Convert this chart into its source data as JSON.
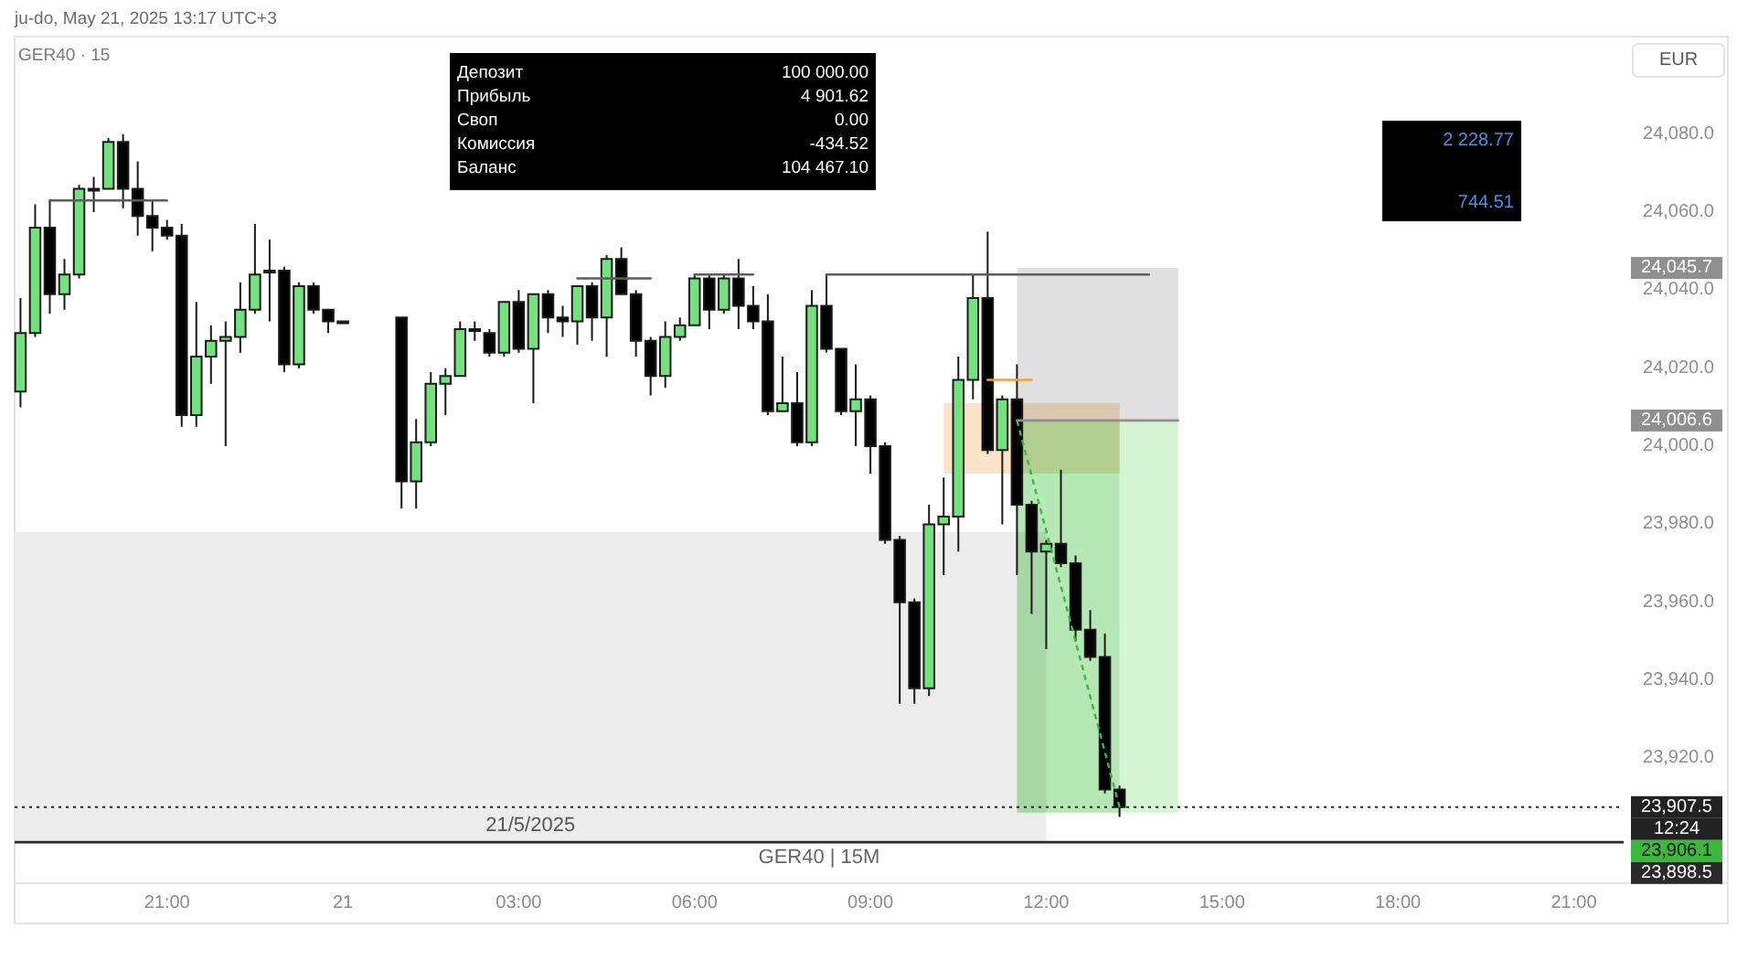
{
  "chart_data": [
    {
      "type": "candlestick",
      "title": "GER40 · 15",
      "ylabel": "EUR",
      "annotations": [
        "ju-do, May 21, 2025 13:17 UTC+3",
        "GER40 | 15M",
        "24,045.7",
        "24,006.6",
        "12:24",
        "23,906.1",
        "21/5/2025"
      ],
      "xlim": [
        "2025-05-20T18:24",
        "2025-05-21T21:51"
      ],
      "xticks": [
        {
          "value": "2025-05-20T21:00",
          "label": "21:00"
        },
        {
          "value": "2025-05-21T00:00",
          "label": "21"
        },
        {
          "value": "2025-05-21T03:00",
          "label": "03:00"
        },
        {
          "value": "2025-05-21T06:00",
          "label": "06:00"
        },
        {
          "value": "2025-05-21T09:00",
          "label": "09:00"
        },
        {
          "value": "2025-05-21T12:00",
          "label": "12:00"
        },
        {
          "value": "2025-05-21T15:00",
          "label": "15:00"
        },
        {
          "value": "2025-05-21T18:00",
          "label": "18:00"
        },
        {
          "value": "2025-05-21T21:00",
          "label": "21:00"
        }
      ],
      "ylim": [
        23888,
        24105
      ],
      "yticks": [
        {
          "value": 23920,
          "label": "23,920.0"
        },
        {
          "value": 23940,
          "label": "23,940.0"
        },
        {
          "value": 23960,
          "label": "23,960.0"
        },
        {
          "value": 23980,
          "label": "23,980.0"
        },
        {
          "value": 24000,
          "label": "24,000.0"
        },
        {
          "value": 24020,
          "label": "24,020.0"
        },
        {
          "value": 24040,
          "label": "24,040.0"
        },
        {
          "value": 24060,
          "label": "24,060.0"
        },
        {
          "value": 24080,
          "label": "24,080.0"
        }
      ],
      "ref_lines": [
        {
          "axis": "y",
          "value": 23907.5,
          "label": "23,907.5",
          "line_style": "dotted",
          "color": "#222222"
        },
        {
          "axis": "y",
          "value": 23898.5,
          "label": "23,898.5",
          "color": "#2a2a2a"
        }
      ],
      "series": [
        {
          "type": "line",
          "color": "#ececec",
          "x": [
            "2025-05-20T18:24",
            "2025-05-21T12:00"
          ],
          "values": [
            null,
            null
          ],
          "lower": [
            23898.5,
            23898.5
          ],
          "upper": [
            23978,
            23978
          ]
        },
        {
          "type": "line",
          "color": "#e0e0e0",
          "x": [
            "2025-05-21T11:30",
            "2025-05-21T14:15"
          ],
          "values": [
            null,
            null
          ],
          "lower": [
            24006.6,
            24006.6
          ],
          "upper": [
            24045.7,
            24045.7
          ]
        },
        {
          "type": "line",
          "color": "#b5e8b5",
          "x": [
            "2025-05-21T11:30",
            "2025-05-21T13:15"
          ],
          "values": [
            null,
            null
          ],
          "lower": [
            23906.1,
            23906.1
          ],
          "upper": [
            24006.6,
            24006.6
          ]
        },
        {
          "type": "line",
          "color": "#d4f5d4",
          "x": [
            "2025-05-21T13:15",
            "2025-05-21T14:15"
          ],
          "values": [
            null,
            null
          ],
          "lower": [
            23906.1,
            23906.1
          ],
          "upper": [
            24006.6,
            24006.6
          ]
        },
        {
          "type": "line",
          "color": "#fbe3c9",
          "x": [
            "2025-05-21T10:15",
            "2025-05-21T13:15"
          ],
          "values": [
            null,
            null
          ],
          "lower": [
            23993,
            23993
          ],
          "upper": [
            24011,
            24011
          ]
        },
        {
          "type": "line",
          "color": "#8f8f8f",
          "x": [
            "2025-05-21T11:30",
            "2025-05-21T14:15"
          ],
          "values": [
            24006.6,
            24006.6
          ]
        },
        {
          "type": "line",
          "color": "#3cb83c",
          "line_style": "dashed",
          "x": [
            "2025-05-21T11:30",
            "2025-05-21T13:15"
          ],
          "values": [
            24006.6,
            23907.5
          ]
        },
        {
          "type": "line",
          "color": "#5d5d5d",
          "x": [
            "2025-05-20T19:00",
            "2025-05-20T21:00"
          ],
          "values": [
            24063,
            24063
          ]
        },
        {
          "type": "line",
          "color": "#5d5d5d",
          "x": [
            "2025-05-21T04:00",
            "2025-05-21T05:15"
          ],
          "values": [
            24043,
            24043
          ]
        },
        {
          "type": "line",
          "color": "#5d5d5d",
          "x": [
            "2025-05-21T06:00",
            "2025-05-21T07:00"
          ],
          "values": [
            24044,
            24044
          ]
        },
        {
          "type": "line",
          "color": "#5d5d5d",
          "x": [
            "2025-05-21T08:15",
            "2025-05-21T13:45"
          ],
          "values": [
            24044,
            24044
          ]
        },
        {
          "type": "line",
          "color": "#f2a23c",
          "x": [
            "2025-05-21T11:00",
            "2025-05-21T11:45"
          ],
          "values": [
            24017,
            24017
          ]
        },
        {
          "type": "candlestick",
          "x": [
            "2025-05-20T18:30",
            "2025-05-20T18:45",
            "2025-05-20T19:00",
            "2025-05-20T19:15",
            "2025-05-20T19:30",
            "2025-05-20T19:45",
            "2025-05-20T20:00",
            "2025-05-20T20:15",
            "2025-05-20T20:30",
            "2025-05-20T20:45",
            "2025-05-20T21:00",
            "2025-05-20T21:15",
            "2025-05-20T21:30",
            "2025-05-20T21:45",
            "2025-05-20T22:00",
            "2025-05-20T22:15",
            "2025-05-20T22:30",
            "2025-05-20T22:45",
            "2025-05-20T23:00",
            "2025-05-20T23:15",
            "2025-05-20T23:30",
            "2025-05-20T23:45",
            "2025-05-21T00:00",
            "2025-05-21T01:00",
            "2025-05-21T01:15",
            "2025-05-21T01:30",
            "2025-05-21T01:45",
            "2025-05-21T02:00",
            "2025-05-21T02:15",
            "2025-05-21T02:30",
            "2025-05-21T02:45",
            "2025-05-21T03:00",
            "2025-05-21T03:15",
            "2025-05-21T03:30",
            "2025-05-21T03:45",
            "2025-05-21T04:00",
            "2025-05-21T04:15",
            "2025-05-21T04:30",
            "2025-05-21T04:45",
            "2025-05-21T05:00",
            "2025-05-21T05:15",
            "2025-05-21T05:30",
            "2025-05-21T05:45",
            "2025-05-21T06:00",
            "2025-05-21T06:15",
            "2025-05-21T06:30",
            "2025-05-21T06:45",
            "2025-05-21T07:00",
            "2025-05-21T07:15",
            "2025-05-21T07:30",
            "2025-05-21T07:45",
            "2025-05-21T08:00",
            "2025-05-21T08:15",
            "2025-05-21T08:30",
            "2025-05-21T08:45",
            "2025-05-21T09:00",
            "2025-05-21T09:15",
            "2025-05-21T09:30",
            "2025-05-21T09:45",
            "2025-05-21T10:00",
            "2025-05-21T10:15",
            "2025-05-21T10:30",
            "2025-05-21T10:45",
            "2025-05-21T11:00",
            "2025-05-21T11:15",
            "2025-05-21T11:30",
            "2025-05-21T11:45",
            "2025-05-21T12:00",
            "2025-05-21T12:15",
            "2025-05-21T12:30",
            "2025-05-21T12:45",
            "2025-05-21T13:00",
            "2025-05-21T13:15"
          ],
          "ohlc": [
            [
              24014,
              24038,
              24010,
              24029
            ],
            [
              24029,
              24062,
              24028,
              24056
            ],
            [
              24056,
              24063,
              24034,
              24039
            ],
            [
              24039,
              24048,
              24035,
              24044
            ],
            [
              24044,
              24067,
              24043,
              24066
            ],
            [
              24066,
              24069,
              24060,
              24066
            ],
            [
              24066,
              24079,
              24066,
              24078
            ],
            [
              24078,
              24080,
              24061,
              24066
            ],
            [
              24066,
              24073,
              24054,
              24059
            ],
            [
              24059,
              24063,
              24050,
              24056
            ],
            [
              24056,
              24058,
              24053,
              24054
            ],
            [
              24054,
              24057,
              24005,
              24008
            ],
            [
              24008,
              24037,
              24005,
              24023
            ],
            [
              24023,
              24031,
              24016,
              24027
            ],
            [
              24027,
              24032,
              24000,
              24028
            ],
            [
              24028,
              24042,
              24024,
              24035
            ],
            [
              24035,
              24057,
              24034,
              24044
            ],
            [
              24045,
              24053,
              24032,
              24045
            ],
            [
              24045,
              24046,
              24019,
              24021
            ],
            [
              24021,
              24042,
              24020,
              24041
            ],
            [
              24041,
              24042,
              24034,
              24035
            ],
            [
              24035,
              24035,
              24029,
              24032
            ],
            [
              24032,
              24032,
              24032,
              24032
            ],
            [
              24033,
              24033,
              23984,
              23991
            ],
            [
              23991,
              24007,
              23984,
              24001
            ],
            [
              24001,
              24019,
              24000,
              24016
            ],
            [
              24016,
              24020,
              24008,
              24018
            ],
            [
              24018,
              24032,
              24018,
              24030
            ],
            [
              24030,
              24032,
              24027,
              24030
            ],
            [
              24029,
              24030,
              24023,
              24024
            ],
            [
              24024,
              24037,
              24023,
              24037
            ],
            [
              24037,
              24040,
              24024,
              24025
            ],
            [
              24025,
              24039,
              24011,
              24039
            ],
            [
              24039,
              24040,
              24029,
              24033
            ],
            [
              24033,
              24036,
              24028,
              24032
            ],
            [
              24032,
              24041,
              24026,
              24041
            ],
            [
              24041,
              24042,
              24027,
              24033
            ],
            [
              24033,
              24049,
              24023,
              24048
            ],
            [
              24048,
              24051,
              24039,
              24039
            ],
            [
              24039,
              24040,
              24023,
              24027
            ],
            [
              24027,
              24028,
              24013,
              24018
            ],
            [
              24018,
              24032,
              24015,
              24028
            ],
            [
              24028,
              24033,
              24027,
              24031
            ],
            [
              24031,
              24044,
              24031,
              24043
            ],
            [
              24043,
              24044,
              24030,
              24035
            ],
            [
              24035,
              24044,
              24034,
              24043
            ],
            [
              24043,
              24048,
              24030,
              24036
            ],
            [
              24036,
              24041,
              24030,
              24032
            ],
            [
              24032,
              24039,
              24008,
              24009
            ],
            [
              24009,
              24023,
              24009,
              24011
            ],
            [
              24011,
              24019,
              24000,
              24001
            ],
            [
              24001,
              24040,
              24000,
              24036
            ],
            [
              24036,
              24044,
              24024,
              24025
            ],
            [
              24025,
              24025,
              24008,
              24009
            ],
            [
              24009,
              24021,
              24000,
              24012
            ],
            [
              24012,
              24013,
              23993,
              24000
            ],
            [
              24000,
              24001,
              23975,
              23976
            ],
            [
              23976,
              23977,
              23934,
              23960
            ],
            [
              23960,
              23961,
              23934,
              23938
            ],
            [
              23938,
              23985,
              23936,
              23980
            ],
            [
              23980,
              23992,
              23967,
              23982
            ],
            [
              23982,
              24023,
              23973,
              24017
            ],
            [
              24017,
              24044,
              24012,
              24038
            ],
            [
              24038,
              24055,
              23998,
              23999
            ],
            [
              23999,
              24013,
              23980,
              24012
            ],
            [
              24012,
              24021,
              23967,
              23985
            ],
            [
              23985,
              23986,
              23957,
              23973
            ],
            [
              23973,
              23976,
              23948,
              23975
            ],
            [
              23975,
              23994,
              23969,
              23970
            ],
            [
              23970,
              23972,
              23950,
              23953
            ],
            [
              23953,
              23958,
              23945,
              23946
            ],
            [
              23946,
              23952,
              23911,
              23912
            ],
            [
              23912,
              23913,
              23905,
              23907.5
            ]
          ],
          "colors": [
            "#72e17e",
            "#72e17e",
            "#000000",
            "#72e17e",
            "#72e17e",
            "#000000",
            "#72e17e",
            "#000000",
            "#000000",
            "#000000",
            "#000000",
            "#000000",
            "#72e17e",
            "#72e17e",
            "#72e17e",
            "#72e17e",
            "#72e17e",
            "#000000",
            "#000000",
            "#72e17e",
            "#000000",
            "#000000",
            "#000000",
            "#000000",
            "#72e17e",
            "#72e17e",
            "#72e17e",
            "#72e17e",
            "#000000",
            "#000000",
            "#72e17e",
            "#000000",
            "#72e17e",
            "#000000",
            "#000000",
            "#72e17e",
            "#000000",
            "#72e17e",
            "#000000",
            "#000000",
            "#000000",
            "#72e17e",
            "#72e17e",
            "#72e17e",
            "#000000",
            "#72e17e",
            "#000000",
            "#000000",
            "#000000",
            "#72e17e",
            "#000000",
            "#72e17e",
            "#000000",
            "#000000",
            "#72e17e",
            "#000000",
            "#000000",
            "#000000",
            "#000000",
            "#72e17e",
            "#72e17e",
            "#72e17e",
            "#72e17e",
            "#000000",
            "#72e17e",
            "#000000",
            "#000000",
            "#72e17e",
            "#000000",
            "#000000",
            "#000000",
            "#000000",
            "#000000"
          ]
        }
      ]
    },
    {
      "type": "other",
      "color": "#ffffff",
      "annotations": [
        "Депозит",
        "100 000.00",
        "Прибыль",
        "4 901.62",
        "Своп",
        "0.00",
        "Комиссия",
        "-434.52",
        "Баланс",
        "104 467.10"
      ]
    },
    {
      "type": "other",
      "color": "#4a8fe8",
      "annotations": [
        "2 228.77",
        "744.51"
      ]
    }
  ]
}
